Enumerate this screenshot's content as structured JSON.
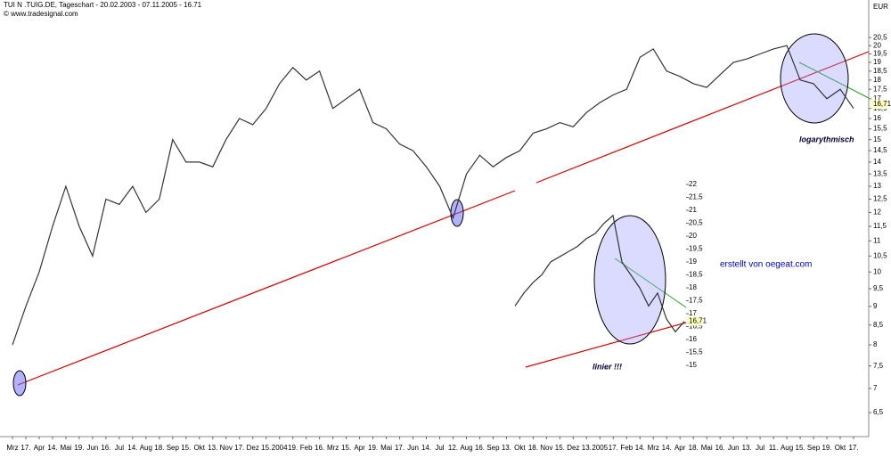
{
  "header": {
    "title": "TUI N .TUIG.DE, Tageschart - 20.02.2003 - 07.11.2005 - 16.71",
    "source": "© www.tradesignal.com"
  },
  "credit": "erstellt von oegeat.com",
  "chart_data": [
    {
      "type": "line",
      "y_label": "EUR",
      "log_scale": true,
      "color": "#333333",
      "annotation": "logarythmisch",
      "last_value": {
        "value": 16.71,
        "label": "16,71"
      },
      "categories": [
        "Mrz",
        "17.",
        "Apr",
        "14.",
        "Mai",
        "19.",
        "Jun",
        "16.",
        "Jul",
        "14.",
        "Aug",
        "18.",
        "Sep",
        "15.",
        "Okt",
        "13.",
        "Nov",
        "17.",
        "Dez",
        "15.",
        "2004",
        "19.",
        "Feb",
        "16.",
        "Mrz",
        "15.",
        "Apr",
        "19.",
        "Mai",
        "17.",
        "Jun",
        "14.",
        "Jul",
        "12.",
        "Aug",
        "16.",
        "Sep",
        "13.",
        "Okt",
        "18.",
        "Nov",
        "15.",
        "Dez",
        "13.",
        "2005",
        "17.",
        "Feb",
        "14.",
        "Mrz",
        "14.",
        "Apr",
        "18.",
        "Mai",
        "16.",
        "Jun",
        "13.",
        "Jul",
        "11.",
        "Aug",
        "15.",
        "Sep",
        "19.",
        "Okt",
        "17."
      ],
      "values": [
        8.0,
        9.0,
        10.0,
        11.5,
        13.0,
        11.5,
        10.5,
        12.5,
        12.3,
        13.0,
        12.0,
        12.5,
        15.0,
        14.0,
        14.0,
        13.8,
        15.0,
        16.0,
        15.7,
        16.5,
        17.8,
        18.7,
        18.0,
        18.5,
        16.5,
        17.0,
        17.5,
        15.8,
        15.5,
        14.8,
        14.5,
        13.8,
        13.0,
        11.8,
        13.5,
        14.3,
        13.8,
        14.2,
        14.5,
        15.3,
        15.5,
        15.8,
        15.6,
        16.3,
        16.8,
        17.2,
        17.5,
        19.3,
        19.8,
        18.5,
        18.2,
        17.8,
        17.6,
        18.3,
        19.0,
        19.2,
        19.5,
        19.8,
        20.0,
        18.0,
        17.8,
        17.0,
        17.5,
        16.5
      ],
      "ylim": [
        6.04,
        23.0
      ],
      "yticks": [
        {
          "value": 6.5,
          "label": "6,5"
        },
        7,
        {
          "value": 7.5,
          "label": "7,5"
        },
        8,
        {
          "value": 8.5,
          "label": "8,5"
        },
        9,
        {
          "value": 9.5,
          "label": "9,5"
        },
        10,
        {
          "value": 10.5,
          "label": "10,5"
        },
        11,
        {
          "value": 11.5,
          "label": "11,5"
        },
        12,
        {
          "value": 12.5,
          "label": "12,5"
        },
        13,
        {
          "value": 13.5,
          "label": "13,5"
        },
        14,
        {
          "value": 14.5,
          "label": "14,5"
        },
        15,
        {
          "value": 15.5,
          "label": "15,5"
        },
        16,
        {
          "value": 16.5,
          "label": "16,5"
        },
        17,
        {
          "value": 17.5,
          "label": "17,5"
        },
        18,
        {
          "value": 18.5,
          "label": "18,5"
        },
        19,
        {
          "value": 19.5,
          "label": "19,5"
        },
        20,
        {
          "value": 20.5,
          "label": "20,5"
        }
      ]
    },
    {
      "type": "line",
      "log_scale": false,
      "color": "#333333",
      "annotation": "linier !!!",
      "last_value": {
        "value": 16.71,
        "label": "16,71"
      },
      "values": [
        17.3,
        17.8,
        18.2,
        18.5,
        19.0,
        19.2,
        19.4,
        19.6,
        19.9,
        20.1,
        20.5,
        20.8,
        19.0,
        18.5,
        18.0,
        17.3,
        17.8,
        16.8,
        16.3,
        16.7
      ],
      "ylim": [
        14.83,
        22.07
      ],
      "yticks": [
        15,
        {
          "value": 15.5,
          "label": "15,5"
        },
        16,
        {
          "value": 16.5,
          "label": "16,5"
        },
        17,
        {
          "value": 17.5,
          "label": "17,5"
        },
        18,
        {
          "value": 18.5,
          "label": "18,5"
        },
        19,
        {
          "value": 19.5,
          "label": "19,5"
        },
        20,
        {
          "value": 20.5,
          "label": "20,5"
        },
        21,
        {
          "value": 21.5,
          "label": "21,5"
        },
        22
      ]
    }
  ]
}
